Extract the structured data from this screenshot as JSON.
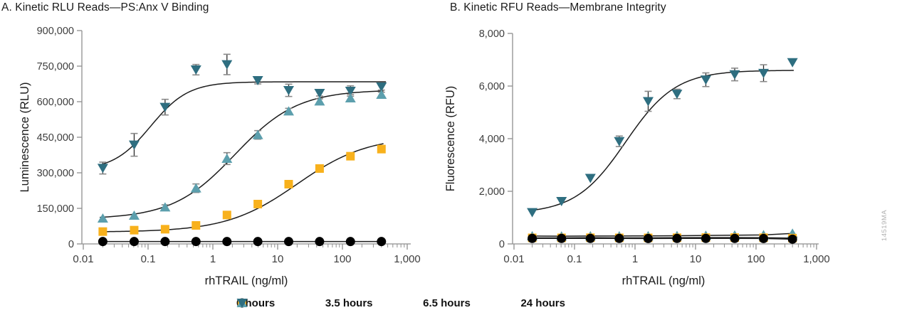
{
  "watermark": "14519MA",
  "colors": {
    "series_0h": "#000000",
    "series_3_5h": "#F8B11C",
    "series_6_5h": "#5C9FAD",
    "series_24h": "#2E6E80",
    "axis": "#8f8f8f",
    "curve": "#1c1c1c",
    "tick_text": "#3d3d3d"
  },
  "legend": [
    {
      "label": "0 hours",
      "marker": "circle",
      "color": "#000000"
    },
    {
      "label": "3.5 hours",
      "marker": "square",
      "color": "#F8B11C"
    },
    {
      "label": "6.5 hours",
      "marker": "triangle-up",
      "color": "#5C9FAD"
    },
    {
      "label": "24 hours",
      "marker": "triangle-down",
      "color": "#2E6E80"
    }
  ],
  "chart_data": [
    {
      "id": "A",
      "type": "scatter",
      "title": "A. Kinetic RLU Reads—PS:Anx V Binding",
      "xlabel": "rhTRAIL (ng/ml)",
      "ylabel": "Luminescence (RLU)",
      "x_scale": "log",
      "xlim": [
        0.01,
        1000
      ],
      "x_ticks": [
        "0.01",
        "0.1",
        "1",
        "10",
        "100",
        "1,000"
      ],
      "ylim": [
        0,
        900000
      ],
      "y_ticks": [
        "0",
        "150,000",
        "300,000",
        "450,000",
        "600,000",
        "750,000",
        "900,000"
      ],
      "x": [
        0.02,
        0.061,
        0.183,
        0.549,
        1.65,
        4.94,
        14.8,
        44.4,
        133,
        400
      ],
      "series": [
        {
          "name": "0 hours",
          "marker": "circle",
          "color": "#000000",
          "values": [
            10000,
            10000,
            10000,
            10000,
            10000,
            10000,
            10000,
            10000,
            10000,
            10000
          ],
          "err": [
            0,
            0,
            0,
            0,
            0,
            0,
            0,
            0,
            0,
            0
          ]
        },
        {
          "name": "3.5 hours",
          "marker": "square",
          "color": "#F8B11C",
          "values": [
            52000,
            58000,
            62000,
            78000,
            122000,
            168000,
            252000,
            318000,
            370000,
            400000
          ],
          "err": [
            0,
            0,
            0,
            0,
            0,
            0,
            0,
            0,
            0,
            0
          ],
          "fit": {
            "bottom": 50000,
            "top": 455000,
            "ec50": 20,
            "hill": 0.8,
            "range": [
              0.018,
              430
            ]
          }
        },
        {
          "name": "6.5 hours",
          "marker": "triangle-up",
          "color": "#5C9FAD",
          "values": [
            108000,
            120000,
            155000,
            235000,
            360000,
            460000,
            560000,
            602000,
            615000,
            630000
          ],
          "err": [
            0,
            0,
            10000,
            18000,
            25000,
            18000,
            12000,
            10000,
            15000,
            10000
          ],
          "fit": {
            "bottom": 105000,
            "top": 650000,
            "ec50": 2.2,
            "hill": 0.9,
            "range": [
              0.018,
              430
            ]
          }
        },
        {
          "name": "24 hours",
          "marker": "triangle-down",
          "color": "#2E6E80",
          "values": [
            320000,
            418000,
            577000,
            735000,
            757000,
            690000,
            648000,
            636000,
            645000,
            663000
          ],
          "err": [
            25000,
            48000,
            33000,
            22000,
            43000,
            15000,
            26000,
            12000,
            22000,
            14000
          ],
          "fit": {
            "bottom": 310000,
            "top": 684000,
            "ec50": 0.11,
            "hill": 1.5,
            "range": [
              0.018,
              470
            ]
          }
        }
      ]
    },
    {
      "id": "B",
      "type": "scatter",
      "title": "B. Kinetic RFU Reads—Membrane Integrity",
      "xlabel": "rhTRAIL (ng/ml)",
      "ylabel": "Fluorescence (RFU)",
      "x_scale": "log",
      "xlim": [
        0.01,
        1000
      ],
      "x_ticks": [
        "0.01",
        "0.1",
        "1",
        "10",
        "100",
        "1,000"
      ],
      "ylim": [
        0,
        8000
      ],
      "y_ticks": [
        "0",
        "2,000",
        "4,000",
        "6,000",
        "8,000"
      ],
      "x": [
        0.02,
        0.061,
        0.183,
        0.549,
        1.65,
        4.94,
        14.8,
        44.4,
        133,
        400
      ],
      "series": [
        {
          "name": "0 hours",
          "marker": "circle",
          "color": "#000000",
          "values": [
            210,
            210,
            210,
            210,
            205,
            210,
            210,
            210,
            205,
            180
          ],
          "err": [
            0,
            0,
            0,
            0,
            0,
            0,
            0,
            0,
            0,
            0
          ]
        },
        {
          "name": "3.5 hours",
          "marker": "square",
          "color": "#F8B11C",
          "values": [
            230,
            230,
            235,
            230,
            230,
            235,
            240,
            240,
            235,
            220
          ],
          "err": [
            0,
            0,
            0,
            0,
            0,
            0,
            0,
            0,
            0,
            0
          ]
        },
        {
          "name": "6.5 hours",
          "marker": "triangle-up",
          "color": "#5C9FAD",
          "values": [
            300,
            295,
            300,
            300,
            305,
            310,
            320,
            330,
            340,
            400
          ],
          "err": [
            0,
            0,
            0,
            0,
            0,
            0,
            0,
            0,
            0,
            0
          ]
        },
        {
          "name": "24 hours",
          "marker": "triangle-down",
          "color": "#2E6E80",
          "values": [
            1200,
            1620,
            2500,
            3900,
            5420,
            5700,
            6240,
            6440,
            6490,
            6900
          ],
          "err": [
            0,
            0,
            0,
            200,
            380,
            180,
            260,
            240,
            320,
            0
          ],
          "fit": {
            "bottom": 1150,
            "top": 6600,
            "ec50": 0.7,
            "hill": 1.05,
            "range": [
              0.018,
              420
            ]
          }
        }
      ]
    }
  ]
}
